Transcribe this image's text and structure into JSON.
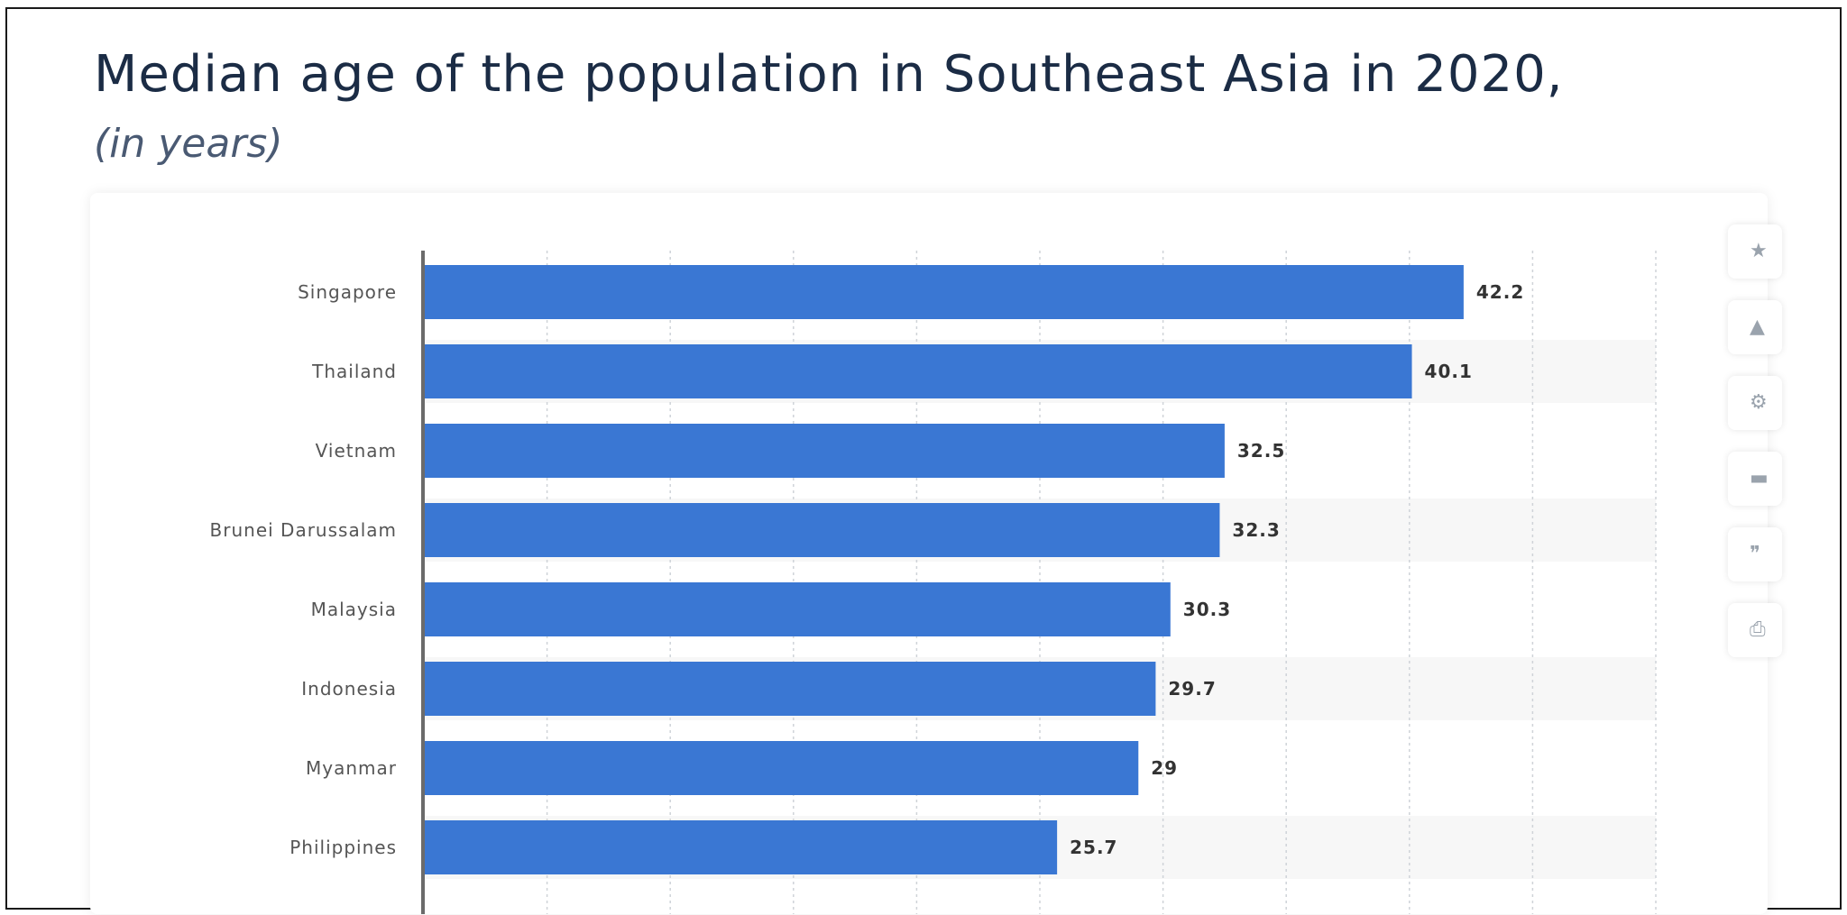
{
  "chart_data": {
    "type": "bar",
    "orientation": "horizontal",
    "title": "Median age of the population in Southeast Asia in 2020,",
    "subtitle": "(in years)",
    "categories": [
      "Singapore",
      "Thailand",
      "Vietnam",
      "Brunei Darussalam",
      "Malaysia",
      "Indonesia",
      "Myanmar",
      "Philippines"
    ],
    "values": [
      42.2,
      40.1,
      32.5,
      32.3,
      30.3,
      29.7,
      29,
      25.7
    ],
    "value_labels": [
      "42.2",
      "40.1",
      "32.5",
      "32.3",
      "30.3",
      "29.7",
      "29",
      "25.7"
    ],
    "xlim": [
      0,
      50
    ],
    "grid": true,
    "bar_color": "#3a77d3"
  },
  "toolbar": {
    "icons": [
      "star-icon",
      "bell-icon",
      "gear-icon",
      "share-icon",
      "quote-icon",
      "print-icon"
    ]
  },
  "colors": {
    "title": "#1b2c45",
    "subtitle": "#4a5a73",
    "bar": "#3a77d3",
    "band": "#f7f7f7"
  }
}
